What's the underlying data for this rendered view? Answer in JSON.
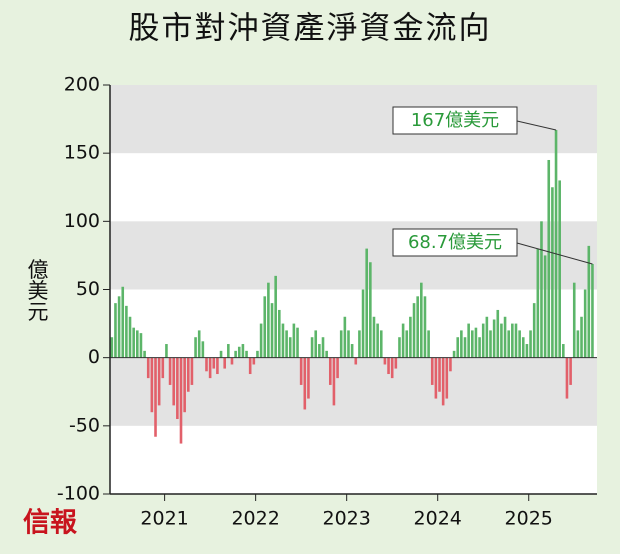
{
  "chart_data": {
    "type": "bar",
    "title": "股市對沖資產淨資金流向",
    "y_label": "億美元",
    "logo": "信報",
    "x": [
      2020.42,
      2020.46,
      2020.5,
      2020.54,
      2020.58,
      2020.62,
      2020.66,
      2020.7,
      2020.74,
      2020.78,
      2020.82,
      2020.86,
      2020.9,
      2020.94,
      2020.98,
      2021.02,
      2021.06,
      2021.1,
      2021.14,
      2021.18,
      2021.22,
      2021.26,
      2021.3,
      2021.34,
      2021.38,
      2021.42,
      2021.46,
      2021.5,
      2021.54,
      2021.58,
      2021.62,
      2021.66,
      2021.7,
      2021.74,
      2021.78,
      2021.82,
      2021.86,
      2021.9,
      2021.94,
      2021.98,
      2022.02,
      2022.06,
      2022.1,
      2022.14,
      2022.18,
      2022.22,
      2022.26,
      2022.3,
      2022.34,
      2022.38,
      2022.42,
      2022.46,
      2022.5,
      2022.54,
      2022.58,
      2022.62,
      2022.66,
      2022.7,
      2022.74,
      2022.78,
      2022.82,
      2022.86,
      2022.9,
      2022.94,
      2022.98,
      2023.02,
      2023.06,
      2023.1,
      2023.14,
      2023.18,
      2023.22,
      2023.26,
      2023.3,
      2023.34,
      2023.38,
      2023.42,
      2023.46,
      2023.5,
      2023.54,
      2023.58,
      2023.62,
      2023.66,
      2023.7,
      2023.74,
      2023.78,
      2023.82,
      2023.86,
      2023.9,
      2023.94,
      2023.98,
      2024.02,
      2024.06,
      2024.1,
      2024.14,
      2024.18,
      2024.22,
      2024.26,
      2024.3,
      2024.34,
      2024.38,
      2024.42,
      2024.46,
      2024.5,
      2024.54,
      2024.58,
      2024.62,
      2024.66,
      2024.7,
      2024.74,
      2024.78,
      2024.82,
      2024.86,
      2024.9,
      2024.94,
      2024.98,
      2025.02,
      2025.06,
      2025.1,
      2025.14,
      2025.18,
      2025.22,
      2025.26,
      2025.3,
      2025.34,
      2025.38,
      2025.42,
      2025.46,
      2025.5,
      2025.54,
      2025.58,
      2025.62,
      2025.66,
      2025.7
    ],
    "values": [
      15,
      40,
      45,
      52,
      38,
      30,
      22,
      20,
      18,
      5,
      -15,
      -40,
      -58,
      -35,
      -15,
      10,
      -20,
      -35,
      -45,
      -63,
      -40,
      -25,
      -20,
      15,
      20,
      12,
      -10,
      -15,
      -8,
      -12,
      5,
      -8,
      10,
      -5,
      5,
      8,
      10,
      5,
      -12,
      -5,
      5,
      25,
      45,
      55,
      40,
      60,
      35,
      25,
      20,
      15,
      25,
      22,
      -20,
      -38,
      -30,
      15,
      20,
      10,
      15,
      5,
      -20,
      -35,
      -15,
      20,
      30,
      20,
      10,
      -5,
      20,
      50,
      80,
      70,
      30,
      25,
      20,
      -5,
      -12,
      -15,
      -8,
      15,
      25,
      20,
      30,
      40,
      45,
      55,
      45,
      20,
      -20,
      -30,
      -25,
      -35,
      -30,
      -10,
      5,
      15,
      20,
      15,
      25,
      20,
      22,
      15,
      25,
      30,
      20,
      28,
      35,
      25,
      30,
      20,
      25,
      25,
      20,
      15,
      10,
      20,
      40,
      80,
      100,
      75,
      145,
      125,
      167,
      130,
      10,
      -30,
      -20,
      55,
      20,
      30,
      50,
      82,
      68.7
    ],
    "colors": {
      "positive": "#5cb569",
      "negative": "#e2606a"
    },
    "xlim": [
      2020.4,
      2025.75
    ],
    "xticks": [
      2021,
      2022,
      2023,
      2024,
      2025
    ],
    "ylim": [
      -100,
      200
    ],
    "yticks": [
      200,
      150,
      100,
      50,
      0,
      -50,
      -100
    ],
    "grid": "bands",
    "annotations": [
      {
        "label": "167億美元",
        "x": 2025.3,
        "y": 167
      },
      {
        "label": "68.7億美元",
        "x": 2025.7,
        "y": 68.7
      }
    ]
  }
}
